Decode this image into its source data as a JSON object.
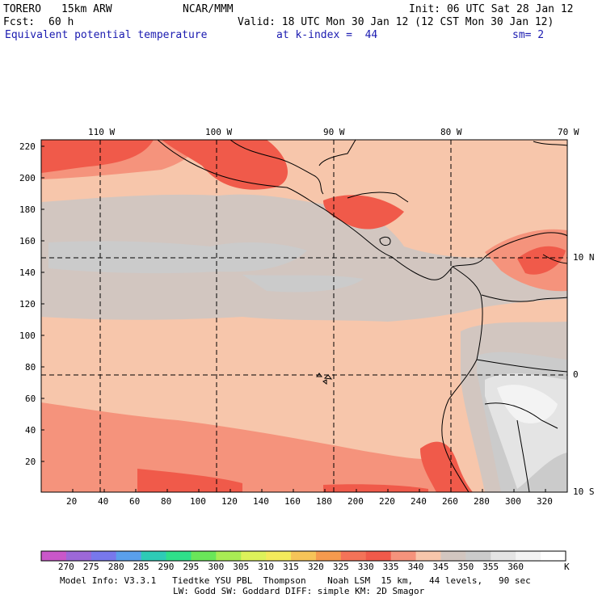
{
  "header": {
    "model_name": "TORERO",
    "resolution": "15km ARW",
    "center": "NCAR/MMM",
    "init": "Init: 06 UTC Sat 28 Jan 12",
    "fcst_label": "Fcst:",
    "fcst_value": "60 h",
    "valid": "Valid: 18 UTC Mon 30 Jan 12 (12 CST Mon 30 Jan 12)",
    "field": "Equivalent potential temperature",
    "level": "at k-index =  44",
    "smoothing": "sm= 2"
  },
  "map": {
    "lon_labels": [
      "110 W",
      "100 W",
      "90 W",
      "80 W",
      "70 W"
    ],
    "lat_labels": [
      "10 N",
      "0",
      "10 S"
    ],
    "y_ticks": [
      "220",
      "200",
      "180",
      "160",
      "140",
      "120",
      "100",
      "80",
      "60",
      "40",
      "20"
    ],
    "x_ticks": [
      "20",
      "40",
      "60",
      "80",
      "100",
      "120",
      "140",
      "160",
      "180",
      "200",
      "220",
      "240",
      "260",
      "280",
      "300",
      "320"
    ],
    "bands": [
      {
        "level": "330",
        "color": "#f05a4a"
      },
      {
        "level": "335",
        "color": "#f5937c"
      },
      {
        "level": "340",
        "color": "#f7c6ab"
      },
      {
        "level": "345",
        "color": "#d2c6c0"
      },
      {
        "level": "350",
        "color": "#cbcbcb"
      },
      {
        "level": "355",
        "color": "#e4e4e4"
      },
      {
        "level": "360",
        "color": "#f3f3f3"
      }
    ]
  },
  "colorbar": {
    "colors": [
      "#c957c9",
      "#9c68d8",
      "#7878ec",
      "#5aa0ec",
      "#2ecbb6",
      "#2fdf8a",
      "#6ae659",
      "#a9ec54",
      "#ddf25a",
      "#f4ea5b",
      "#f6c458",
      "#f59a4e",
      "#f47358",
      "#f05a4a",
      "#f5937c",
      "#f7c6ab",
      "#d2c6c0",
      "#cbcbcb",
      "#e4e4e4",
      "#f3f3f3",
      "#ffffff"
    ],
    "labels": [
      "270",
      "275",
      "280",
      "285",
      "290",
      "295",
      "300",
      "305",
      "310",
      "315",
      "320",
      "325",
      "330",
      "335",
      "340",
      "345",
      "350",
      "355",
      "360"
    ],
    "unit": "K"
  },
  "footer": {
    "line1": "Model Info: V3.3.1   Tiedtke YSU PBL  Thompson    Noah LSM  15 km,   44 levels,   90 sec",
    "line2": "LW: Godd SW: Goddard DIFF: simple KM: 2D Smagor"
  }
}
